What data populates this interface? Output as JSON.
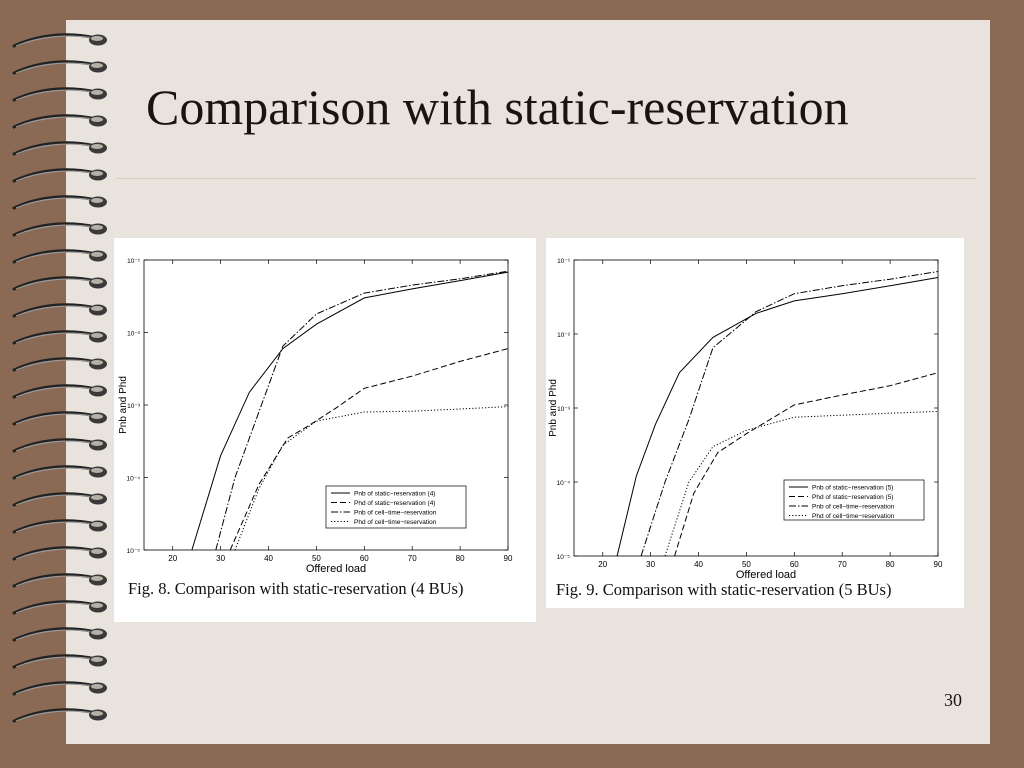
{
  "slide": {
    "title": "Comparison with static-reservation",
    "page_number": "30",
    "colors": {
      "frame": "#8B6A55",
      "slide": "#E8E3DD",
      "panel": "#FFFFFF",
      "ink": "#1A1410"
    }
  },
  "figures": [
    {
      "caption": "Fig. 8. Comparison with static-reservation (4 BUs)"
    },
    {
      "caption": "Fig. 9. Comparison with static-reservation (5 BUs)"
    }
  ],
  "chart_data": [
    {
      "type": "line",
      "xlabel": "Offered load",
      "ylabel": "Pnb and Phd",
      "xlim": [
        14,
        90
      ],
      "xticks": [
        20,
        30,
        40,
        50,
        60,
        70,
        80,
        90
      ],
      "y_scale": "log",
      "ylim": [
        1e-05,
        0.1
      ],
      "yticks": [
        1e-05,
        0.0001,
        0.001,
        0.01,
        0.1
      ],
      "ytick_labels": [
        "10⁻⁵",
        "10⁻⁴",
        "10⁻³",
        "10⁻²",
        "10⁻¹"
      ],
      "legend_position": "bottom-right",
      "series": [
        {
          "name": "Pnb of static−reservation (4)",
          "style": "solid",
          "x": [
            24,
            30,
            36,
            43,
            50,
            60,
            70,
            80,
            90
          ],
          "y": [
            1e-05,
            0.0002,
            0.0015,
            0.006,
            0.013,
            0.03,
            0.04,
            0.052,
            0.068
          ]
        },
        {
          "name": "Phd of static−reservation (4)",
          "style": "dashed",
          "x": [
            32,
            38,
            44,
            48,
            54,
            60,
            70,
            80,
            90
          ],
          "y": [
            1e-05,
            8e-05,
            0.00035,
            0.0005,
            0.0009,
            0.0017,
            0.0025,
            0.004,
            0.006
          ]
        },
        {
          "name": "Pnb of cell−time−reservation",
          "style": "dashdot",
          "x": [
            29,
            33,
            38,
            43,
            50,
            60,
            70,
            80,
            90
          ],
          "y": [
            1e-05,
            0.0001,
            0.0008,
            0.0065,
            0.018,
            0.035,
            0.045,
            0.055,
            0.07
          ]
        },
        {
          "name": "Phd of cell−time−reservation",
          "style": "dotted",
          "x": [
            33,
            38,
            43,
            50,
            60,
            70,
            80,
            90
          ],
          "y": [
            1e-05,
            7e-05,
            0.00028,
            0.0006,
            0.0008,
            0.00082,
            0.00088,
            0.00095
          ]
        }
      ]
    },
    {
      "type": "line",
      "xlabel": "Offered load",
      "ylabel": "Pnb and Phd",
      "xlim": [
        14,
        90
      ],
      "xticks": [
        20,
        30,
        40,
        50,
        60,
        70,
        80,
        90
      ],
      "y_scale": "log",
      "ylim": [
        1e-05,
        0.1
      ],
      "yticks": [
        1e-05,
        0.0001,
        0.001,
        0.01,
        0.1
      ],
      "ytick_labels": [
        "10⁻⁵",
        "10⁻⁴",
        "10⁻³",
        "10⁻²",
        "10⁻¹"
      ],
      "legend_position": "bottom-right",
      "series": [
        {
          "name": "Pnb of static−reservation (5)",
          "style": "solid",
          "x": [
            23,
            27,
            31,
            36,
            43,
            52,
            60,
            70,
            80,
            90
          ],
          "y": [
            1e-05,
            0.00012,
            0.0006,
            0.003,
            0.009,
            0.019,
            0.028,
            0.035,
            0.045,
            0.058
          ]
        },
        {
          "name": "Phd of static−reservation (5)",
          "style": "dashed",
          "x": [
            35,
            39,
            44,
            50,
            60,
            70,
            80,
            90
          ],
          "y": [
            1e-05,
            7e-05,
            0.00025,
            0.00045,
            0.0011,
            0.0015,
            0.002,
            0.003
          ]
        },
        {
          "name": "Pnb of cell−time−reservation",
          "style": "dashdot",
          "x": [
            28,
            33,
            38,
            43,
            52,
            60,
            70,
            80,
            90
          ],
          "y": [
            1e-05,
            0.0001,
            0.0007,
            0.0065,
            0.02,
            0.035,
            0.045,
            0.055,
            0.07
          ]
        },
        {
          "name": "Phd of cell−time−reservation",
          "style": "dotted",
          "x": [
            33,
            38,
            43,
            50,
            60,
            70,
            80,
            90
          ],
          "y": [
            1e-05,
            0.0001,
            0.0003,
            0.0005,
            0.00075,
            0.0008,
            0.00085,
            0.0009
          ]
        }
      ]
    }
  ]
}
